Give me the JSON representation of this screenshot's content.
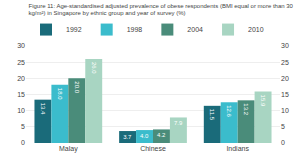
{
  "chart_data": {
    "type": "bar",
    "title": "Figure 11: Age-standardised adjusted prevalence of obese respondents (BMI equal or more than 30",
    "subtitle": "kg/m²) in Singapore by ethnic group and year of survey (%)",
    "categories": [
      "Malay",
      "Chinese",
      "Indians"
    ],
    "series": [
      {
        "name": "1992",
        "color": "#1a6b7a",
        "values": [
          13.4,
          3.7,
          11.5
        ],
        "value_labels": [
          "13.4",
          "3.7",
          "11.5"
        ]
      },
      {
        "name": "1998",
        "color": "#3bbccc",
        "values": [
          18.0,
          4.0,
          12.6
        ],
        "value_labels": [
          "18.0",
          "4.0",
          "12.6"
        ]
      },
      {
        "name": "2004",
        "color": "#4a8c7a",
        "values": [
          20.0,
          4.2,
          13.2
        ],
        "value_labels": [
          "20.0",
          "4.2",
          "13.2"
        ]
      },
      {
        "name": "2010",
        "color": "#a8d5c2",
        "values": [
          26.0,
          7.9,
          15.9
        ],
        "value_labels": [
          "26.0",
          "7.9",
          "15.9"
        ]
      }
    ],
    "ylim": [
      0,
      30
    ],
    "yticks": [
      0,
      5,
      10,
      15,
      20,
      25,
      30
    ],
    "y2lim": [
      0,
      30
    ],
    "y2ticks": [
      0,
      5,
      10,
      15,
      20,
      25,
      30
    ],
    "grid": true,
    "legend": "top",
    "data_labels": true
  }
}
